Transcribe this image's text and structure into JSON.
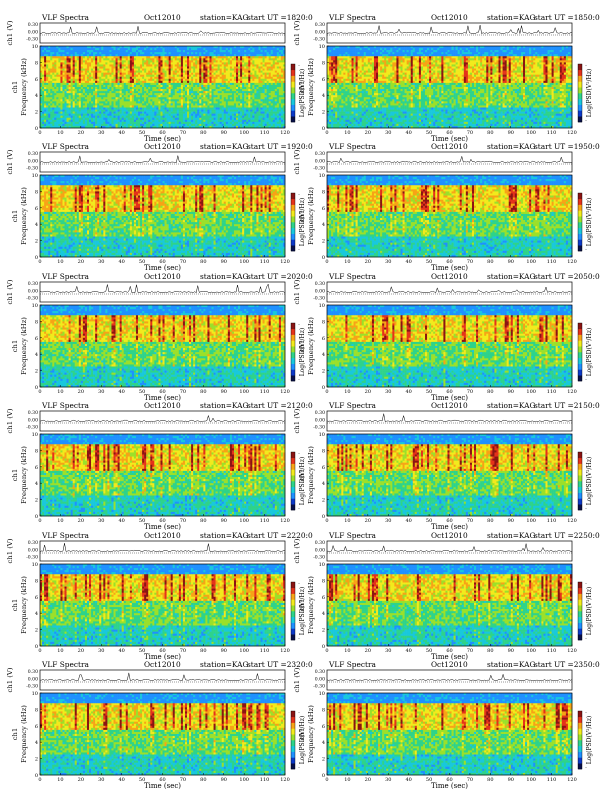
{
  "page": {
    "theme_colors": {
      "background": "#ffffff",
      "axis": "#000000",
      "trace": "#000000"
    }
  },
  "colormap": [
    "#08104a",
    "#0c39c8",
    "#1e90ff",
    "#18c8dc",
    "#2ed38a",
    "#9be02a",
    "#f2ea1c",
    "#f7a316",
    "#e4321b",
    "#8a1413"
  ],
  "chart_data": [
    {
      "type": "heatmap",
      "header": {
        "left": "VLF Spectra",
        "date": "Oct12010",
        "station": "station=KAG",
        "start": "start UT =1820:0"
      },
      "ch1_label": "ch1 (V)",
      "ch1_ticks": [
        "0.30",
        "0.00",
        "-0.30"
      ],
      "ylabel": "Frequency (kHz)",
      "ylabel_left": "ch1",
      "y_ticks": [
        "0",
        "2",
        "4",
        "6",
        "8",
        "10"
      ],
      "ylim": [
        0,
        10
      ],
      "xlabel": "Time (sec)",
      "x_ticks": [
        "0",
        "10",
        "20",
        "30",
        "40",
        "50",
        "60",
        "70",
        "80",
        "90",
        "100",
        "110",
        "120"
      ],
      "xlim": [
        0,
        120
      ],
      "colorbar_label": "Log(PSD(V²/Hz)",
      "colorbar_ticks": [
        "-",
        "-"
      ]
    },
    {
      "type": "heatmap",
      "header": {
        "left": "VLF Spectra",
        "date": "Oct12010",
        "station": "station=KAG",
        "start": "start UT =1850:0"
      },
      "ch1_label": "ch1 (V)",
      "ch1_ticks": [
        "0.30",
        "0.00",
        "-0.30"
      ],
      "ylabel": "Frequency (kHz)",
      "ylabel_left": "ch1",
      "y_ticks": [
        "0",
        "2",
        "4",
        "6",
        "8",
        "10"
      ],
      "ylim": [
        0,
        10
      ],
      "xlabel": "Time (sec)",
      "x_ticks": [
        "0",
        "10",
        "20",
        "30",
        "40",
        "50",
        "60",
        "70",
        "80",
        "90",
        "100",
        "110",
        "120"
      ],
      "xlim": [
        0,
        120
      ],
      "colorbar_label": "Log(PSD(V²/Hz)",
      "colorbar_ticks": [
        "-",
        "-"
      ]
    },
    {
      "type": "heatmap",
      "header": {
        "left": "VLF Spectra",
        "date": "Oct12010",
        "station": "station=KAG",
        "start": "start UT =1920:0"
      },
      "ch1_label": "ch1 (V)",
      "ch1_ticks": [
        "0.30",
        "0.00",
        "-0.30"
      ],
      "ylabel": "Frequency (kHz)",
      "ylabel_left": "ch1",
      "y_ticks": [
        "0",
        "2",
        "4",
        "6",
        "8",
        "10"
      ],
      "ylim": [
        0,
        10
      ],
      "xlabel": "Time (sec)",
      "x_ticks": [
        "0",
        "10",
        "20",
        "30",
        "40",
        "50",
        "60",
        "70",
        "80",
        "90",
        "100",
        "110",
        "120"
      ],
      "xlim": [
        0,
        120
      ],
      "colorbar_label": "Log(PSD(V²/Hz)",
      "colorbar_ticks": [
        "-",
        "-"
      ]
    },
    {
      "type": "heatmap",
      "header": {
        "left": "VLF Spectra",
        "date": "Oct12010",
        "station": "station=KAG",
        "start": "start UT =1950:0"
      },
      "ch1_label": "ch1 (V)",
      "ch1_ticks": [
        "0.30",
        "0.00",
        "-0.30"
      ],
      "ylabel": "Frequency (kHz)",
      "ylabel_left": "ch1",
      "y_ticks": [
        "0",
        "2",
        "4",
        "6",
        "8",
        "10"
      ],
      "ylim": [
        0,
        10
      ],
      "xlabel": "Time (sec)",
      "x_ticks": [
        "0",
        "10",
        "20",
        "30",
        "40",
        "50",
        "60",
        "70",
        "80",
        "90",
        "100",
        "110",
        "120"
      ],
      "xlim": [
        0,
        120
      ],
      "colorbar_label": "Log(PSD(V²/Hz)",
      "colorbar_ticks": [
        "-",
        "-"
      ]
    },
    {
      "type": "heatmap",
      "header": {
        "left": "VLF Spectra",
        "date": "Oct12010",
        "station": "station=KAG",
        "start": "start UT =2020:0"
      },
      "ch1_label": "ch1 (V)",
      "ch1_ticks": [
        "0.30",
        "0.00",
        "-0.30"
      ],
      "ylabel": "Frequency (kHz)",
      "ylabel_left": "ch1",
      "y_ticks": [
        "0",
        "2",
        "4",
        "6",
        "8",
        "10"
      ],
      "ylim": [
        0,
        10
      ],
      "xlabel": "Time (sec)",
      "x_ticks": [
        "0",
        "10",
        "20",
        "30",
        "40",
        "50",
        "60",
        "70",
        "80",
        "90",
        "100",
        "110",
        "120"
      ],
      "xlim": [
        0,
        120
      ],
      "colorbar_label": "Log(PSD(V²/Hz)",
      "colorbar_ticks": [
        "-",
        "-"
      ]
    },
    {
      "type": "heatmap",
      "header": {
        "left": "VLF Spectra",
        "date": "Oct12010",
        "station": "station=KAG",
        "start": "start UT =2050:0"
      },
      "ch1_label": "ch1 (V)",
      "ch1_ticks": [
        "0.30",
        "0.00",
        "-0.30"
      ],
      "ylabel": "Frequency (kHz)",
      "ylabel_left": "ch1",
      "y_ticks": [
        "0",
        "2",
        "4",
        "6",
        "8",
        "10"
      ],
      "ylim": [
        0,
        10
      ],
      "xlabel": "Time (sec)",
      "x_ticks": [
        "0",
        "10",
        "20",
        "30",
        "40",
        "50",
        "60",
        "70",
        "80",
        "90",
        "100",
        "110",
        "120"
      ],
      "xlim": [
        0,
        120
      ],
      "colorbar_label": "Log(PSD(V²/Hz)",
      "colorbar_ticks": [
        "-",
        "-"
      ]
    },
    {
      "type": "heatmap",
      "header": {
        "left": "VLF Spectra",
        "date": "Oct12010",
        "station": "station=KAG",
        "start": "start UT =2120:0"
      },
      "ch1_label": "ch1 (V)",
      "ch1_ticks": [
        "0.30",
        "0.00",
        "-0.30"
      ],
      "ylabel": "Frequency (kHz)",
      "ylabel_left": "ch1",
      "y_ticks": [
        "0",
        "2",
        "4",
        "6",
        "8",
        "10"
      ],
      "ylim": [
        0,
        10
      ],
      "xlabel": "Time (sec)",
      "x_ticks": [
        "0",
        "10",
        "20",
        "30",
        "40",
        "50",
        "60",
        "70",
        "80",
        "90",
        "100",
        "110",
        "120"
      ],
      "xlim": [
        0,
        120
      ],
      "colorbar_label": "Log(PSD(V²/Hz)",
      "colorbar_ticks": [
        "-",
        "-"
      ]
    },
    {
      "type": "heatmap",
      "header": {
        "left": "VLF Spectra",
        "date": "Oct12010",
        "station": "station=KAG",
        "start": "start UT =2150:0"
      },
      "ch1_label": "ch1 (V)",
      "ch1_ticks": [
        "0.30",
        "0.00",
        "-0.30"
      ],
      "ylabel": "Frequency (kHz)",
      "ylabel_left": "ch1",
      "y_ticks": [
        "0",
        "2",
        "4",
        "6",
        "8",
        "10"
      ],
      "ylim": [
        0,
        10
      ],
      "xlabel": "Time (sec)",
      "x_ticks": [
        "0",
        "10",
        "20",
        "30",
        "40",
        "50",
        "60",
        "70",
        "80",
        "90",
        "100",
        "110",
        "120"
      ],
      "xlim": [
        0,
        120
      ],
      "colorbar_label": "Log(PSD(V²/Hz)",
      "colorbar_ticks": [
        "-",
        "-"
      ]
    },
    {
      "type": "heatmap",
      "header": {
        "left": "VLF Spectra",
        "date": "Oct12010",
        "station": "station=KAG",
        "start": "start UT =2220:0"
      },
      "ch1_label": "ch1 (V)",
      "ch1_ticks": [
        "0.30",
        "0.00",
        "-0.30"
      ],
      "ylabel": "Frequency (kHz)",
      "ylabel_left": "ch1",
      "y_ticks": [
        "0",
        "2",
        "4",
        "6",
        "8",
        "10"
      ],
      "ylim": [
        0,
        10
      ],
      "xlabel": "Time (sec)",
      "x_ticks": [
        "0",
        "10",
        "20",
        "30",
        "40",
        "50",
        "60",
        "70",
        "80",
        "90",
        "100",
        "110",
        "120"
      ],
      "xlim": [
        0,
        120
      ],
      "colorbar_label": "Log(PSD(V²/Hz)",
      "colorbar_ticks": [
        "-",
        "-"
      ]
    },
    {
      "type": "heatmap",
      "header": {
        "left": "VLF Spectra",
        "date": "Oct12010",
        "station": "station=KAG",
        "start": "start UT =2250:0"
      },
      "ch1_label": "ch1 (V)",
      "ch1_ticks": [
        "0.30",
        "0.00",
        "-0.30"
      ],
      "ylabel": "Frequency (kHz)",
      "ylabel_left": "ch1",
      "y_ticks": [
        "0",
        "2",
        "4",
        "6",
        "8",
        "10"
      ],
      "ylim": [
        0,
        10
      ],
      "xlabel": "Time (sec)",
      "x_ticks": [
        "0",
        "10",
        "20",
        "30",
        "40",
        "50",
        "60",
        "70",
        "80",
        "90",
        "100",
        "110",
        "120"
      ],
      "xlim": [
        0,
        120
      ],
      "colorbar_label": "Log(PSD(V²/Hz)",
      "colorbar_ticks": [
        "-",
        "-"
      ]
    },
    {
      "type": "heatmap",
      "header": {
        "left": "VLF Spectra",
        "date": "Oct12010",
        "station": "station=KAG",
        "start": "start UT =2320:0"
      },
      "ch1_label": "ch1 (V)",
      "ch1_ticks": [
        "0.30",
        "0.00",
        "-0.30"
      ],
      "ylabel": "Frequency (kHz)",
      "ylabel_left": "ch1",
      "y_ticks": [
        "0",
        "2",
        "4",
        "6",
        "8",
        "10"
      ],
      "ylim": [
        0,
        10
      ],
      "xlabel": "Time (sec)",
      "x_ticks": [
        "0",
        "10",
        "20",
        "30",
        "40",
        "50",
        "60",
        "70",
        "80",
        "90",
        "100",
        "110",
        "120"
      ],
      "xlim": [
        0,
        120
      ],
      "colorbar_label": "Log(PSD(V²/Hz)",
      "colorbar_ticks": [
        "-",
        "-"
      ]
    },
    {
      "type": "heatmap",
      "header": {
        "left": "VLF Spectra",
        "date": "Oct12010",
        "station": "station=KAG",
        "start": "start UT =2350:0"
      },
      "ch1_label": "ch1 (V)",
      "ch1_ticks": [
        "0.30",
        "0.00",
        "-0.30"
      ],
      "ylabel": "Frequency (kHz)",
      "ylabel_left": "ch1",
      "y_ticks": [
        "0",
        "2",
        "4",
        "6",
        "8",
        "10"
      ],
      "ylim": [
        0,
        10
      ],
      "xlabel": "Time (sec)",
      "x_ticks": [
        "0",
        "10",
        "20",
        "30",
        "40",
        "50",
        "60",
        "70",
        "80",
        "90",
        "100",
        "110",
        "120"
      ],
      "xlim": [
        0,
        120
      ],
      "colorbar_label": "Log(PSD(V²/Hz)",
      "colorbar_ticks": [
        "-",
        "-"
      ]
    }
  ]
}
